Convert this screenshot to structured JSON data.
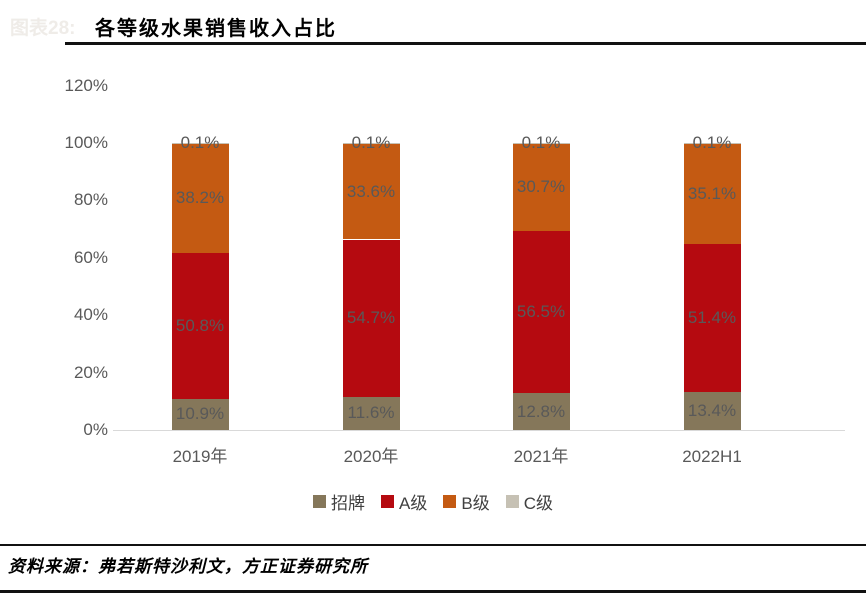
{
  "page": {
    "faint_caption": "图表28:",
    "title": "各等级水果销售收入占比",
    "source": "资料来源：弗若斯特沙利文，方正证券研究所"
  },
  "chart_data": {
    "type": "bar",
    "stacked": true,
    "title": "各等级水果销售收入占比",
    "categories": [
      "2019年",
      "2020年",
      "2021年",
      "2022H1"
    ],
    "series": [
      {
        "name": "招牌",
        "color": "#85775a",
        "values": [
          10.9,
          11.6,
          12.8,
          13.4
        ]
      },
      {
        "name": "A级",
        "color": "#b50a10",
        "values": [
          50.8,
          54.7,
          56.5,
          51.4
        ]
      },
      {
        "name": "B级",
        "color": "#c45a12",
        "values": [
          38.2,
          33.6,
          30.7,
          35.1
        ]
      },
      {
        "name": "C级",
        "color": "#c6c1b4",
        "values": [
          0.1,
          0.1,
          0.1,
          0.1
        ]
      }
    ],
    "value_label_suffix": "%",
    "xlabel": "",
    "ylabel": "",
    "ylim": [
      0,
      120
    ],
    "ytick_step": 20,
    "ytick_labels": [
      "0%",
      "20%",
      "40%",
      "60%",
      "80%",
      "100%",
      "120%"
    ],
    "grid": false,
    "legend_position": "bottom",
    "axis_label_color": "#595959",
    "baseline_color": "#d9d9d9"
  }
}
